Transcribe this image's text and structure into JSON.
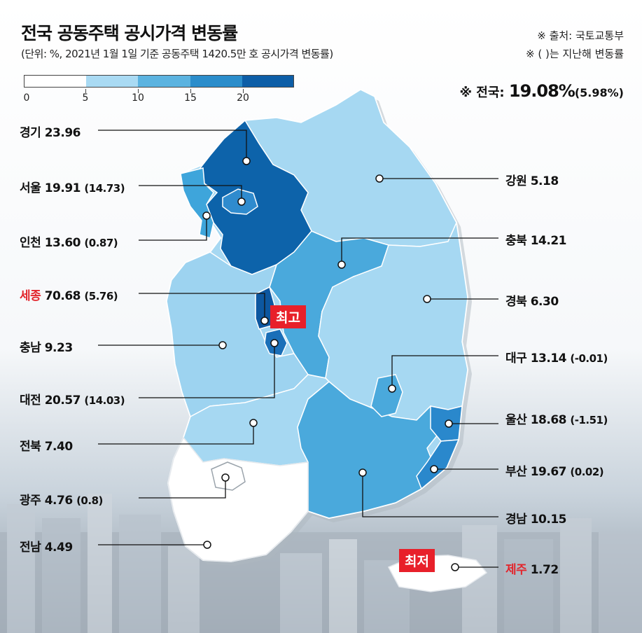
{
  "title": "전국 공동주택 공시가격 변동률",
  "subtitle": "(단위: %, 2021년 1월 1일 기준 공동주택 1420.5만 호 공시가격 변동률)",
  "source": "※ 출처: 국토교통부",
  "prev_note": "※ ( )는 지난해 변동률",
  "national": {
    "prefix": "※ 전국:",
    "value": "19.08%",
    "prev": "(5.98%)"
  },
  "legend": {
    "ticks": [
      "0",
      "5",
      "10",
      "15",
      "20"
    ],
    "colors": [
      "#ffffff",
      "#a9daf3",
      "#5bb3e0",
      "#2b8dcb",
      "#0d5ea7"
    ]
  },
  "tags": {
    "highest": "최고",
    "lowest": "최저"
  },
  "regions": [
    {
      "name": "경기",
      "value": "23.96",
      "prev": "",
      "color": "#0d63aa",
      "highlight": false
    },
    {
      "name": "서울",
      "value": "19.91",
      "prev": "(14.73)",
      "color": "#2f8bce",
      "highlight": false
    },
    {
      "name": "인천",
      "value": "13.60",
      "prev": "(0.87)",
      "color": "#3ea5db",
      "highlight": false
    },
    {
      "name": "세종",
      "value": "70.68",
      "prev": "(5.76)",
      "color": "#0d57a0",
      "highlight": true
    },
    {
      "name": "충남",
      "value": "9.23",
      "prev": "",
      "color": "#9dd3f0",
      "highlight": false
    },
    {
      "name": "대전",
      "value": "20.57",
      "prev": "(14.03)",
      "color": "#1a6fb8",
      "highlight": false
    },
    {
      "name": "전북",
      "value": "7.40",
      "prev": "",
      "color": "#a6d8f2",
      "highlight": false
    },
    {
      "name": "광주",
      "value": "4.76",
      "prev": "(0.8)",
      "color": "#ffffff",
      "highlight": false
    },
    {
      "name": "전남",
      "value": "4.49",
      "prev": "",
      "color": "#ffffff",
      "highlight": false
    },
    {
      "name": "강원",
      "value": "5.18",
      "prev": "",
      "color": "#a6d8f2",
      "highlight": false
    },
    {
      "name": "충북",
      "value": "14.21",
      "prev": "",
      "color": "#4aa9dc",
      "highlight": false
    },
    {
      "name": "경북",
      "value": "6.30",
      "prev": "",
      "color": "#a6d8f2",
      "highlight": false
    },
    {
      "name": "대구",
      "value": "13.14",
      "prev": "(-0.01)",
      "color": "#4aa9dc",
      "highlight": false
    },
    {
      "name": "울산",
      "value": "18.68",
      "prev": "(-1.51)",
      "color": "#2a88cc",
      "highlight": false
    },
    {
      "name": "부산",
      "value": "19.67",
      "prev": "(0.02)",
      "color": "#2a88cc",
      "highlight": false
    },
    {
      "name": "경남",
      "value": "10.15",
      "prev": "",
      "color": "#4aa9dc",
      "highlight": false
    },
    {
      "name": "제주",
      "value": "1.72",
      "prev": "",
      "color": "#ffffff",
      "highlight": true
    }
  ]
}
